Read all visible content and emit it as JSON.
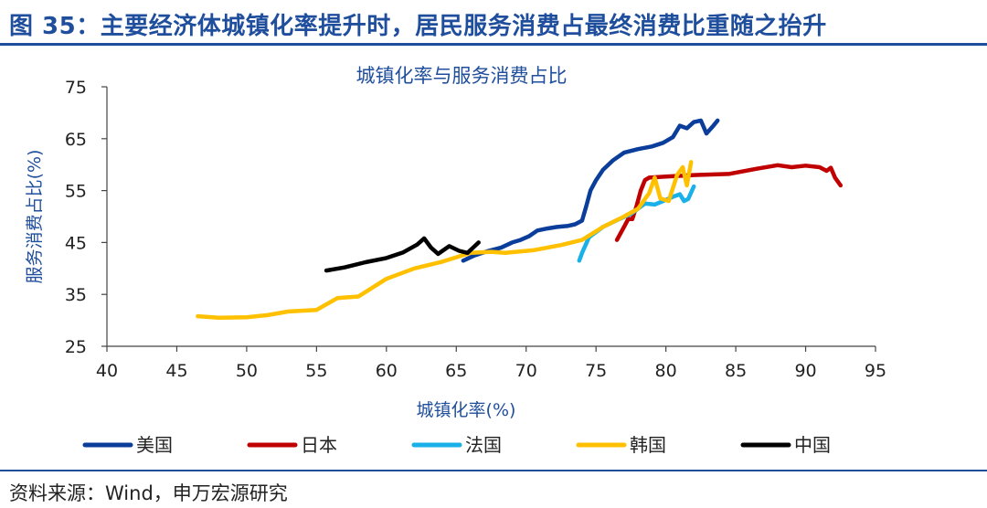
{
  "figure": {
    "title": "图 35：主要经济体城镇化率提升时，居民服务消费占最终消费比重随之抬升",
    "source": "资料来源：Wind，申万宏源研究"
  },
  "chart_data": {
    "type": "line",
    "title": "城镇化率与服务消费占比",
    "xlabel": "城镇化率(%)",
    "ylabel": "服务消费占比(%)",
    "xlim": [
      40,
      95
    ],
    "ylim": [
      25,
      75
    ],
    "xticks": [
      40,
      45,
      50,
      55,
      60,
      65,
      70,
      75,
      80,
      85,
      90,
      95
    ],
    "yticks": [
      25,
      35,
      45,
      55,
      65,
      75
    ],
    "legend_position": "bottom",
    "series": [
      {
        "name": "美国",
        "color": "#0b3e9b",
        "points": [
          [
            65.5,
            41.5
          ],
          [
            66.3,
            42.5
          ],
          [
            67.2,
            43.3
          ],
          [
            68.2,
            44.0
          ],
          [
            69.0,
            45.0
          ],
          [
            69.6,
            45.5
          ],
          [
            70.2,
            46.2
          ],
          [
            70.8,
            47.3
          ],
          [
            71.5,
            47.7
          ],
          [
            72.2,
            48.0
          ],
          [
            73.0,
            48.2
          ],
          [
            73.5,
            48.5
          ],
          [
            74.0,
            49.2
          ],
          [
            74.3,
            52.0
          ],
          [
            74.6,
            55.0
          ],
          [
            75.0,
            57.0
          ],
          [
            75.5,
            59.0
          ],
          [
            76.2,
            60.8
          ],
          [
            77.0,
            62.3
          ],
          [
            78.0,
            63.0
          ],
          [
            79.0,
            63.5
          ],
          [
            79.8,
            64.2
          ],
          [
            80.5,
            65.3
          ],
          [
            81.0,
            67.5
          ],
          [
            81.5,
            67.0
          ],
          [
            82.0,
            68.2
          ],
          [
            82.5,
            68.5
          ],
          [
            82.9,
            66.0
          ],
          [
            83.4,
            67.5
          ],
          [
            83.7,
            68.5
          ]
        ]
      },
      {
        "name": "日本",
        "color": "#c00000",
        "points": [
          [
            76.5,
            45.5
          ],
          [
            77.0,
            48.0
          ],
          [
            77.3,
            49.5
          ],
          [
            77.6,
            49.5
          ],
          [
            77.9,
            52.0
          ],
          [
            78.2,
            55.0
          ],
          [
            78.5,
            57.0
          ],
          [
            78.8,
            57.5
          ],
          [
            80.0,
            57.7
          ],
          [
            82.0,
            58.0
          ],
          [
            84.5,
            58.2
          ],
          [
            86.5,
            59.2
          ],
          [
            88.0,
            59.9
          ],
          [
            89.0,
            59.5
          ],
          [
            90.0,
            59.8
          ],
          [
            91.0,
            59.5
          ],
          [
            91.5,
            58.8
          ],
          [
            91.8,
            59.4
          ],
          [
            92.1,
            57.5
          ],
          [
            92.5,
            56.0
          ]
        ]
      },
      {
        "name": "法国",
        "color": "#1ab0e8",
        "points": [
          [
            73.8,
            41.5
          ],
          [
            74.0,
            43.0
          ],
          [
            74.5,
            46.0
          ],
          [
            75.5,
            48.0
          ],
          [
            76.5,
            49.3
          ],
          [
            77.5,
            50.5
          ],
          [
            78.5,
            52.5
          ],
          [
            79.2,
            52.3
          ],
          [
            79.8,
            53.0
          ],
          [
            80.5,
            53.8
          ],
          [
            81.0,
            54.3
          ],
          [
            81.3,
            53.0
          ],
          [
            81.6,
            53.4
          ],
          [
            82.0,
            55.8
          ]
        ]
      },
      {
        "name": "韩国",
        "color": "#ffc000",
        "points": [
          [
            46.5,
            30.8
          ],
          [
            48.0,
            30.5
          ],
          [
            50.0,
            30.6
          ],
          [
            51.5,
            31.0
          ],
          [
            53.0,
            31.7
          ],
          [
            55.0,
            32.0
          ],
          [
            56.5,
            34.3
          ],
          [
            58.0,
            34.6
          ],
          [
            60.0,
            38.0
          ],
          [
            62.0,
            40.0
          ],
          [
            64.0,
            41.3
          ],
          [
            66.0,
            43.0
          ],
          [
            67.5,
            43.2
          ],
          [
            68.5,
            43.0
          ],
          [
            70.5,
            43.5
          ],
          [
            72.5,
            44.5
          ],
          [
            74.0,
            45.5
          ],
          [
            75.5,
            48.0
          ],
          [
            77.0,
            50.0
          ],
          [
            78.0,
            51.5
          ],
          [
            78.8,
            54.5
          ],
          [
            79.2,
            57.5
          ],
          [
            79.6,
            53.5
          ],
          [
            80.2,
            53.0
          ],
          [
            80.8,
            58.0
          ],
          [
            81.2,
            59.5
          ],
          [
            81.5,
            56.0
          ],
          [
            81.8,
            60.5
          ]
        ]
      },
      {
        "name": "中国",
        "color": "#000000",
        "points": [
          [
            55.7,
            39.6
          ],
          [
            57.0,
            40.2
          ],
          [
            58.5,
            41.2
          ],
          [
            60.0,
            42.0
          ],
          [
            61.2,
            43.1
          ],
          [
            62.2,
            44.6
          ],
          [
            62.7,
            45.8
          ],
          [
            63.2,
            44.0
          ],
          [
            63.7,
            42.8
          ],
          [
            64.5,
            44.3
          ],
          [
            65.2,
            43.4
          ],
          [
            65.8,
            43.0
          ],
          [
            66.2,
            44.0
          ],
          [
            66.6,
            45.0
          ]
        ]
      }
    ]
  }
}
